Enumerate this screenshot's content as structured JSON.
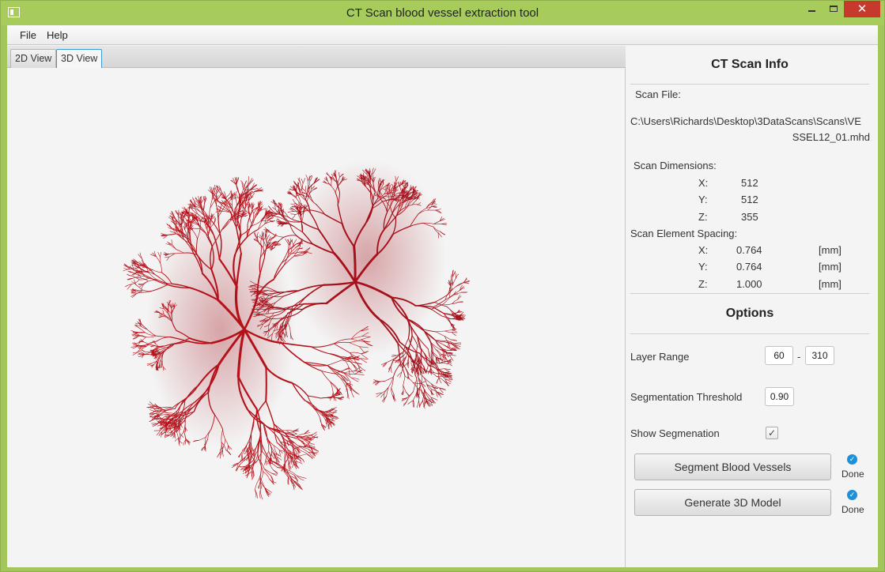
{
  "window": {
    "title": "CT Scan blood vessel extraction tool",
    "close_glyph": "✕"
  },
  "menu": {
    "items": [
      "File",
      "Help"
    ]
  },
  "tabs": [
    {
      "label": "2D View",
      "active": false
    },
    {
      "label": "3D View",
      "active": true
    }
  ],
  "viewer": {
    "model_icon": "lung-vessel-tree-3d",
    "vessel_color": "#b4121b"
  },
  "info": {
    "title": "CT Scan Info",
    "scan_file_label": "Scan File:",
    "scan_file_line1": "C:\\Users\\Richards\\Desktop\\3DataScans\\Scans\\VE",
    "scan_file_line2": "SSEL12_01.mhd",
    "dimensions_label": "Scan Dimensions:",
    "dimensions": [
      {
        "axis": "X:",
        "value": "512"
      },
      {
        "axis": "Y:",
        "value": "512"
      },
      {
        "axis": "Z:",
        "value": "355"
      }
    ],
    "spacing_label": "Scan Element Spacing:",
    "spacing": [
      {
        "axis": "X:",
        "value": "0.764",
        "unit": "[mm]"
      },
      {
        "axis": "Y:",
        "value": "0.764",
        "unit": "[mm]"
      },
      {
        "axis": "Z:",
        "value": "1.000",
        "unit": "[mm]"
      }
    ]
  },
  "options": {
    "title": "Options",
    "layer_range_label": "Layer Range",
    "layer_from": "60",
    "range_dash": "-",
    "layer_to": "310",
    "threshold_label": "Segmentation Threshold",
    "threshold": "0.90",
    "show_seg_label": "Show Segmenation",
    "show_seg_mark": "✓",
    "segment_button": "Segment Blood Vessels",
    "segment_status": "Done",
    "generate_button": "Generate 3D Model",
    "generate_status": "Done",
    "status_glyph": "✓"
  }
}
